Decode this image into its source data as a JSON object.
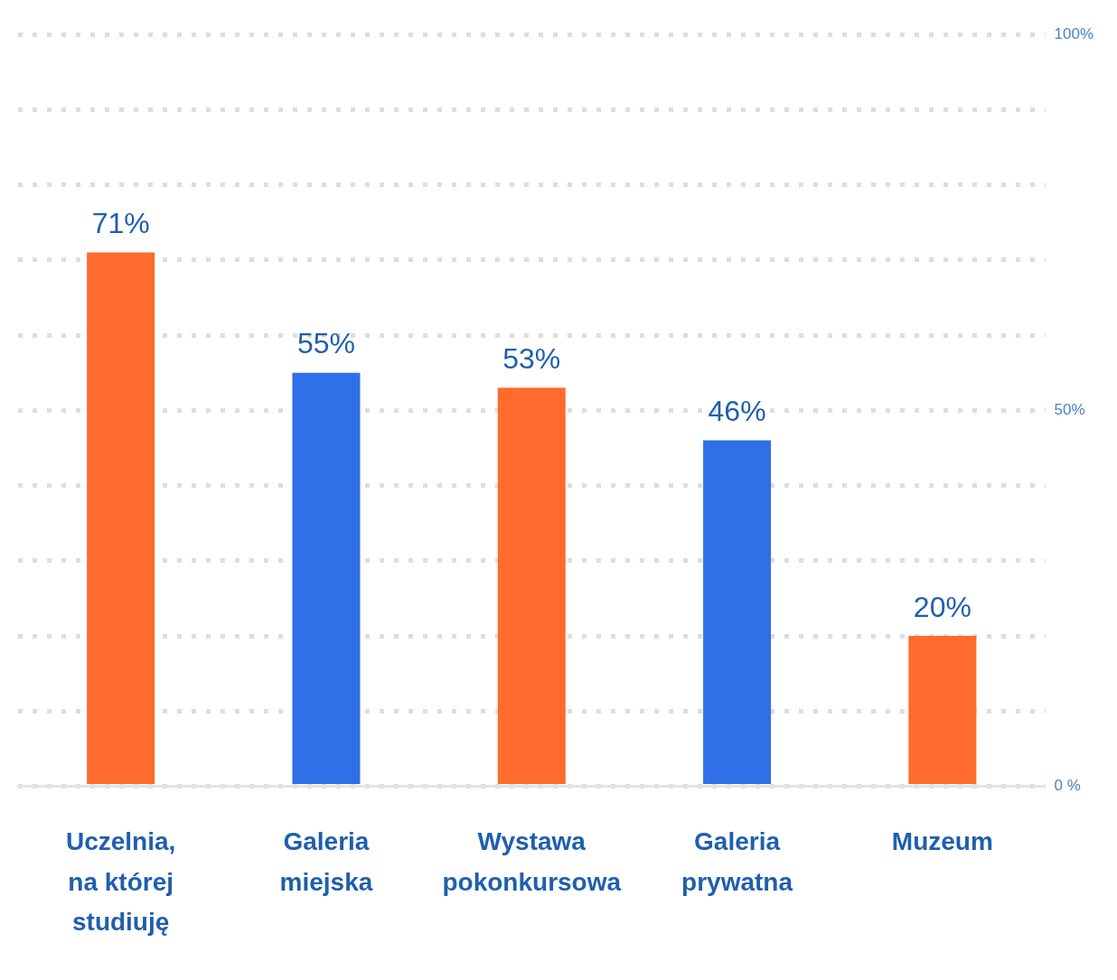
{
  "chart_data": {
    "type": "bar",
    "categories": [
      "Uczelnia, na której studiuję",
      "Galeria miejska",
      "Wystawa pokonkursowa",
      "Galeria prywatna",
      "Muzeum"
    ],
    "values": [
      71,
      55,
      53,
      46,
      20
    ],
    "colors": [
      "#ff6b2c",
      "#2f6fe8",
      "#ff6b2c",
      "#2f6fe8",
      "#ff6b2c"
    ],
    "value_labels": [
      "71%",
      "55%",
      "53%",
      "46%",
      "20%"
    ],
    "ylim": [
      0,
      100
    ],
    "yticks": [
      {
        "value": 0,
        "label": "0 %"
      },
      {
        "value": 10,
        "label": null
      },
      {
        "value": 20,
        "label": null
      },
      {
        "value": 30,
        "label": null
      },
      {
        "value": 40,
        "label": null
      },
      {
        "value": 50,
        "label": "50%"
      },
      {
        "value": 60,
        "label": null
      },
      {
        "value": 70,
        "label": null
      },
      {
        "value": 80,
        "label": null
      },
      {
        "value": 90,
        "label": null
      },
      {
        "value": 100,
        "label": "100%"
      }
    ],
    "grid": "y"
  }
}
